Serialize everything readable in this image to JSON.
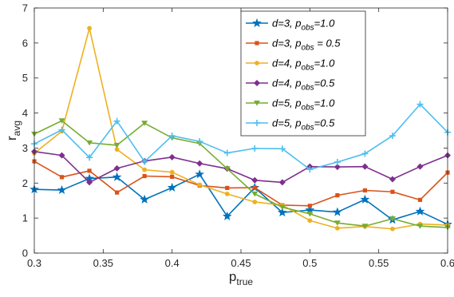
{
  "chart_data": {
    "type": "line",
    "xlabel": {
      "main": "p",
      "sub": "true"
    },
    "ylabel": {
      "main": "r",
      "sub": "avg"
    },
    "xlim": [
      0.3,
      0.6
    ],
    "ylim": [
      0,
      7
    ],
    "x_ticks": [
      "0.3",
      "0.35",
      "0.4",
      "0.45",
      "0.5",
      "0.55",
      "0.6"
    ],
    "y_ticks": [
      "0",
      "1",
      "2",
      "3",
      "4",
      "5",
      "6",
      "7"
    ],
    "legend_position": "top-right",
    "grid": false,
    "x": [
      0.3,
      0.32,
      0.34,
      0.36,
      0.38,
      0.4,
      0.42,
      0.44,
      0.46,
      0.48,
      0.5,
      0.52,
      0.54,
      0.56,
      0.58,
      0.6
    ],
    "series": [
      {
        "name": {
          "a": "d=3, p",
          "sub": "obs",
          "b": "=1.0"
        },
        "color": "#0072BD",
        "marker": "star",
        "values": [
          1.82,
          1.8,
          2.13,
          2.17,
          1.53,
          1.87,
          2.25,
          1.05,
          1.87,
          1.16,
          1.23,
          1.17,
          1.53,
          0.95,
          1.19,
          0.82
        ]
      },
      {
        "name": {
          "a": "d=3, p",
          "sub": "obs",
          "b": " = 0.5"
        },
        "color": "#D95319",
        "marker": "square",
        "values": [
          2.62,
          2.17,
          2.35,
          1.73,
          2.2,
          2.18,
          1.93,
          1.86,
          1.87,
          1.37,
          1.35,
          1.65,
          1.79,
          1.75,
          1.52,
          2.3
        ]
      },
      {
        "name": {
          "a": "d=4, p",
          "sub": "obs",
          "b": "=1.0"
        },
        "color": "#EDB120",
        "marker": "circle",
        "values": [
          2.85,
          3.48,
          6.42,
          2.96,
          2.38,
          2.31,
          1.95,
          1.69,
          1.46,
          1.37,
          0.93,
          0.71,
          0.76,
          0.69,
          0.83,
          0.8
        ]
      },
      {
        "name": {
          "a": "d=4, p",
          "sub": "obs",
          "b": "=0.5"
        },
        "color": "#7E2F8E",
        "marker": "diamond",
        "values": [
          2.9,
          2.79,
          2.02,
          2.42,
          2.63,
          2.74,
          2.56,
          2.41,
          2.08,
          2.02,
          2.47,
          2.46,
          2.47,
          2.11,
          2.47,
          2.79
        ]
      },
      {
        "name": {
          "a": "d=5, p",
          "sub": "obs",
          "b": "=1.0"
        },
        "color": "#77AC30",
        "marker": "triangle",
        "values": [
          3.4,
          3.78,
          3.15,
          3.08,
          3.71,
          3.29,
          3.13,
          2.41,
          1.69,
          1.31,
          1.12,
          0.86,
          0.77,
          0.98,
          0.77,
          0.73
        ]
      },
      {
        "name": {
          "a": "d=5, p",
          "sub": "obs",
          "b": "=0.5"
        },
        "color": "#4DBEEE",
        "marker": "plus",
        "values": [
          3.12,
          3.52,
          2.73,
          3.77,
          2.61,
          3.35,
          3.19,
          2.86,
          2.99,
          2.98,
          2.39,
          2.6,
          2.84,
          3.35,
          4.25,
          3.45
        ]
      }
    ]
  }
}
